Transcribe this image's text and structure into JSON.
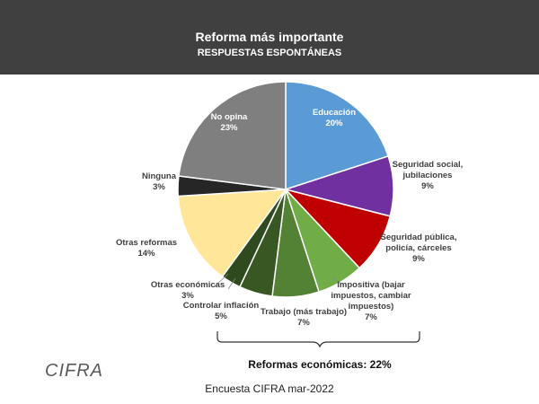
{
  "header": {
    "title": "Reforma más importante",
    "subtitle": "RESPUESTAS ESPONTÁNEAS"
  },
  "chart_data": {
    "type": "pie",
    "title": "Reforma más importante",
    "subtitle": "RESPUESTAS ESPONTÁNEAS",
    "slices": [
      {
        "name": "Educación",
        "lines": [
          "Educación"
        ],
        "pct": "20%",
        "value": 20,
        "color": "#5B9BD5",
        "label_inside": true,
        "text_color": "#ffffff"
      },
      {
        "name": "Seguridad social, jubilaciones",
        "lines": [
          "Seguridad social,",
          "jubilaciones"
        ],
        "pct": "9%",
        "value": 9,
        "color": "#7030A0",
        "label_inside": false
      },
      {
        "name": "Seguridad pública, policía, cárceles",
        "lines": [
          "Seguridad pública,",
          "policía, cárceles"
        ],
        "pct": "9%",
        "value": 9,
        "color": "#C00000",
        "label_inside": false
      },
      {
        "name": "Impositiva (bajar impuestos, cambiar impuestos)",
        "lines": [
          "Impositiva (bajar",
          "impuestos, cambiar",
          "impuestos)"
        ],
        "pct": "7%",
        "value": 7,
        "color": "#70AD47",
        "label_inside": false
      },
      {
        "name": "Trabajo (más trabajo)",
        "lines": [
          "Trabajo (más trabajo)"
        ],
        "pct": "7%",
        "value": 7,
        "color": "#548235",
        "label_inside": false
      },
      {
        "name": "Controlar inflación",
        "lines": [
          "Controlar inflación"
        ],
        "pct": "5%",
        "value": 5,
        "color": "#385723",
        "label_inside": false
      },
      {
        "name": "Otras económicas",
        "lines": [
          "Otras económicas"
        ],
        "pct": "3%",
        "value": 3,
        "color": "#2F4A1E",
        "label_inside": false
      },
      {
        "name": "Otras reformas",
        "lines": [
          "Otras reformas"
        ],
        "pct": "14%",
        "value": 14,
        "color": "#FFE699",
        "label_inside": false
      },
      {
        "name": "Ninguna",
        "lines": [
          "Ninguna"
        ],
        "pct": "3%",
        "value": 3,
        "color": "#262626",
        "label_inside": false
      },
      {
        "name": "No opina",
        "lines": [
          "No opina"
        ],
        "pct": "23%",
        "value": 23,
        "color": "#7F7F7F",
        "label_inside": true,
        "text_color": "#ffffff"
      }
    ],
    "bracket_label": "Reformas económicas: 22%"
  },
  "logo_text": "CIFRA",
  "footer": "Encuesta CIFRA mar-2022"
}
